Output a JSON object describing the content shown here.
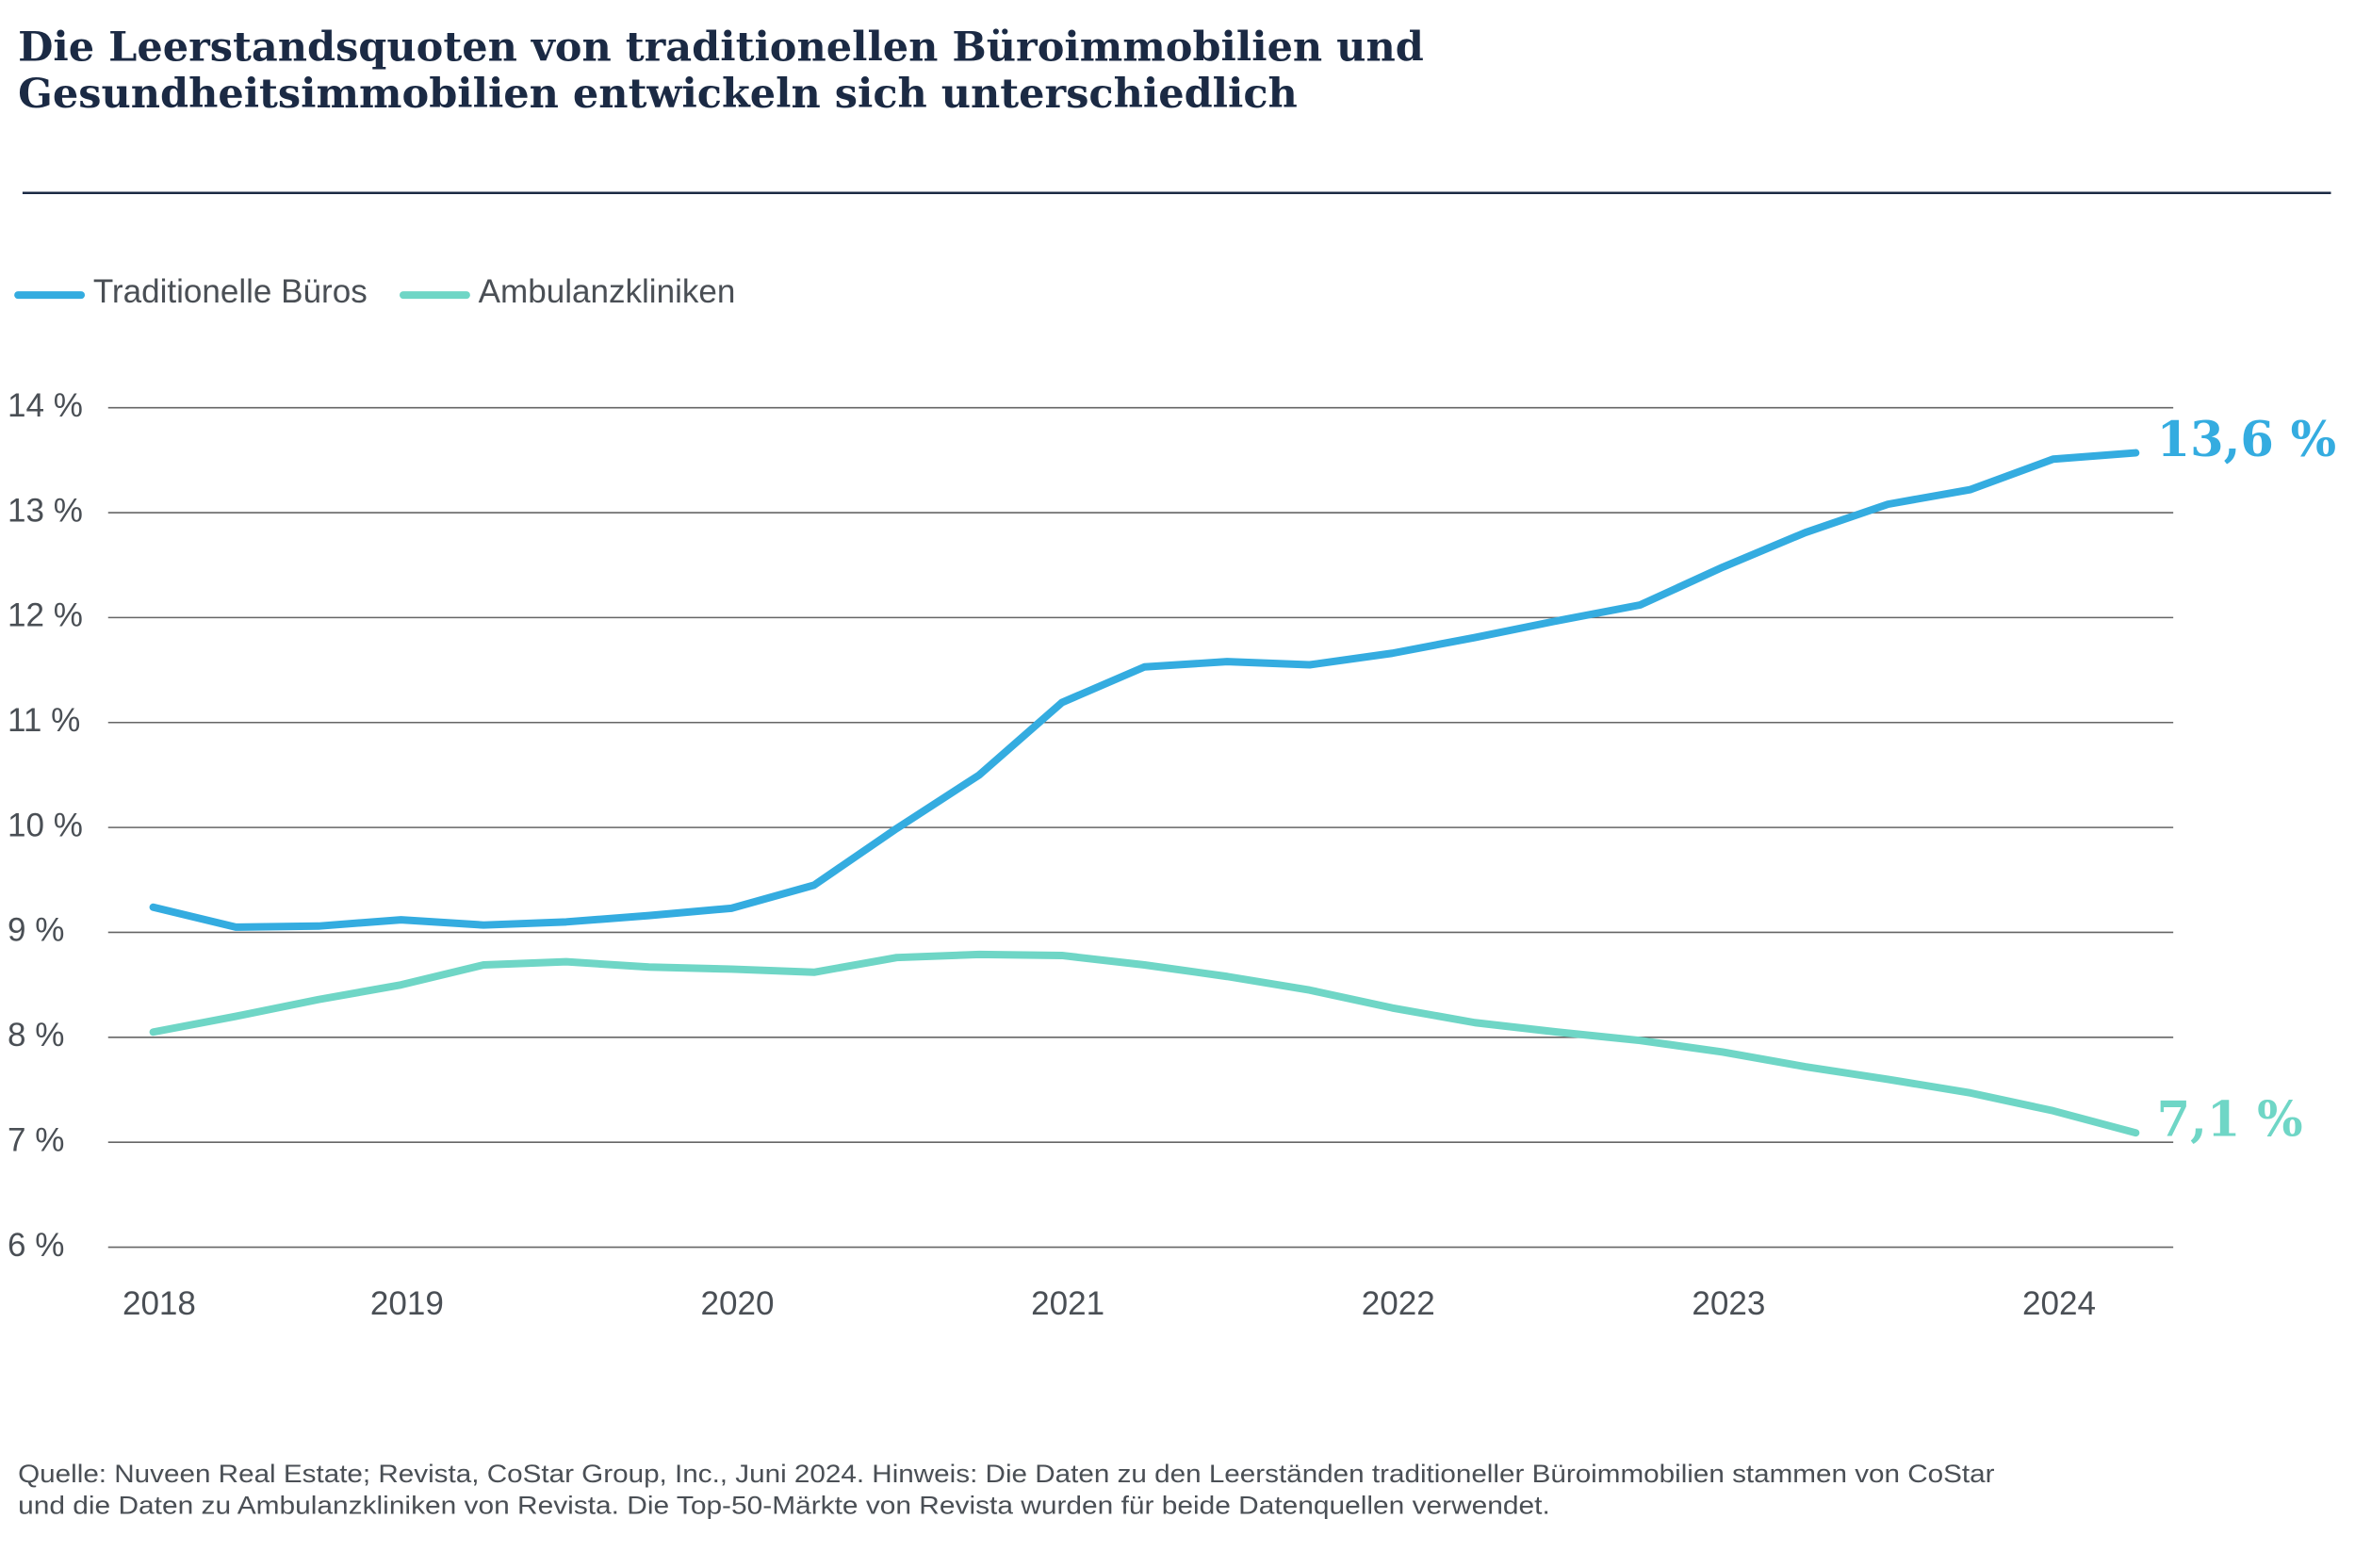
{
  "chart_data": {
    "type": "line",
    "title": [
      "Die Leerstandsquoten von traditionellen Büroimmobilien und",
      "Gesundheitsimmobilien entwickeln sich unterschiedlich"
    ],
    "categories": [
      "2018",
      null,
      null,
      "2019",
      null,
      null,
      null,
      "2020",
      null,
      null,
      null,
      "2021",
      null,
      null,
      null,
      "2022",
      null,
      null,
      null,
      "2023",
      null,
      null,
      null,
      "2024",
      null
    ],
    "series": [
      {
        "name": "Traditionelle Büros",
        "color": "#34ace0",
        "values": [
          9.24,
          9.05,
          9.06,
          9.12,
          9.07,
          9.1,
          9.16,
          9.23,
          9.45,
          9.99,
          10.5,
          11.19,
          11.53,
          11.58,
          11.55,
          11.66,
          11.81,
          11.97,
          12.12,
          12.48,
          12.81,
          13.08,
          13.22,
          13.51,
          13.57
        ],
        "value_labels": [
          null,
          null,
          null,
          null,
          null,
          null,
          null,
          null,
          null,
          null,
          null,
          null,
          null,
          null,
          null,
          null,
          null,
          null,
          null,
          null,
          null,
          null,
          null,
          null,
          "13,6 %"
        ]
      },
      {
        "name": "Ambulanzkliniken",
        "color": "#6fd6c6",
        "values": [
          8.05,
          8.2,
          8.36,
          8.5,
          8.69,
          8.72,
          8.67,
          8.65,
          8.62,
          8.76,
          8.79,
          8.78,
          8.69,
          8.58,
          8.45,
          8.28,
          8.14,
          8.05,
          7.97,
          7.86,
          7.72,
          7.6,
          7.47,
          7.3,
          7.09
        ],
        "value_labels": [
          null,
          null,
          null,
          null,
          null,
          null,
          null,
          null,
          null,
          null,
          null,
          null,
          null,
          null,
          null,
          null,
          null,
          null,
          null,
          null,
          null,
          null,
          null,
          null,
          "7,1 %"
        ]
      }
    ],
    "ylim": [
      6,
      14
    ],
    "yticks": [
      {
        "value": 6,
        "label": "6 %"
      },
      {
        "value": 7,
        "label": "7 %"
      },
      {
        "value": 8,
        "label": "8 %"
      },
      {
        "value": 9,
        "label": "9 %"
      },
      {
        "value": 10,
        "label": "10 %"
      },
      {
        "value": 11,
        "label": "11 %"
      },
      {
        "value": 12,
        "label": "12 %"
      },
      {
        "value": 13,
        "label": "13 %"
      },
      {
        "value": 14,
        "label": "14 %"
      }
    ],
    "grid": true,
    "legend": "top-left",
    "notes": [
      "Quelle: Nuveen Real Estate; Revista, CoStar Group, Inc., Juni 2024. Hinweis: Die Daten zu den Leerständen traditioneller Büroimmobilien stammen von CoStar",
      "und die Daten zu Ambulanzkliniken von Revista. Die Top-50-Märkte von Revista wurden für beide Datenquellen verwendet."
    ]
  }
}
